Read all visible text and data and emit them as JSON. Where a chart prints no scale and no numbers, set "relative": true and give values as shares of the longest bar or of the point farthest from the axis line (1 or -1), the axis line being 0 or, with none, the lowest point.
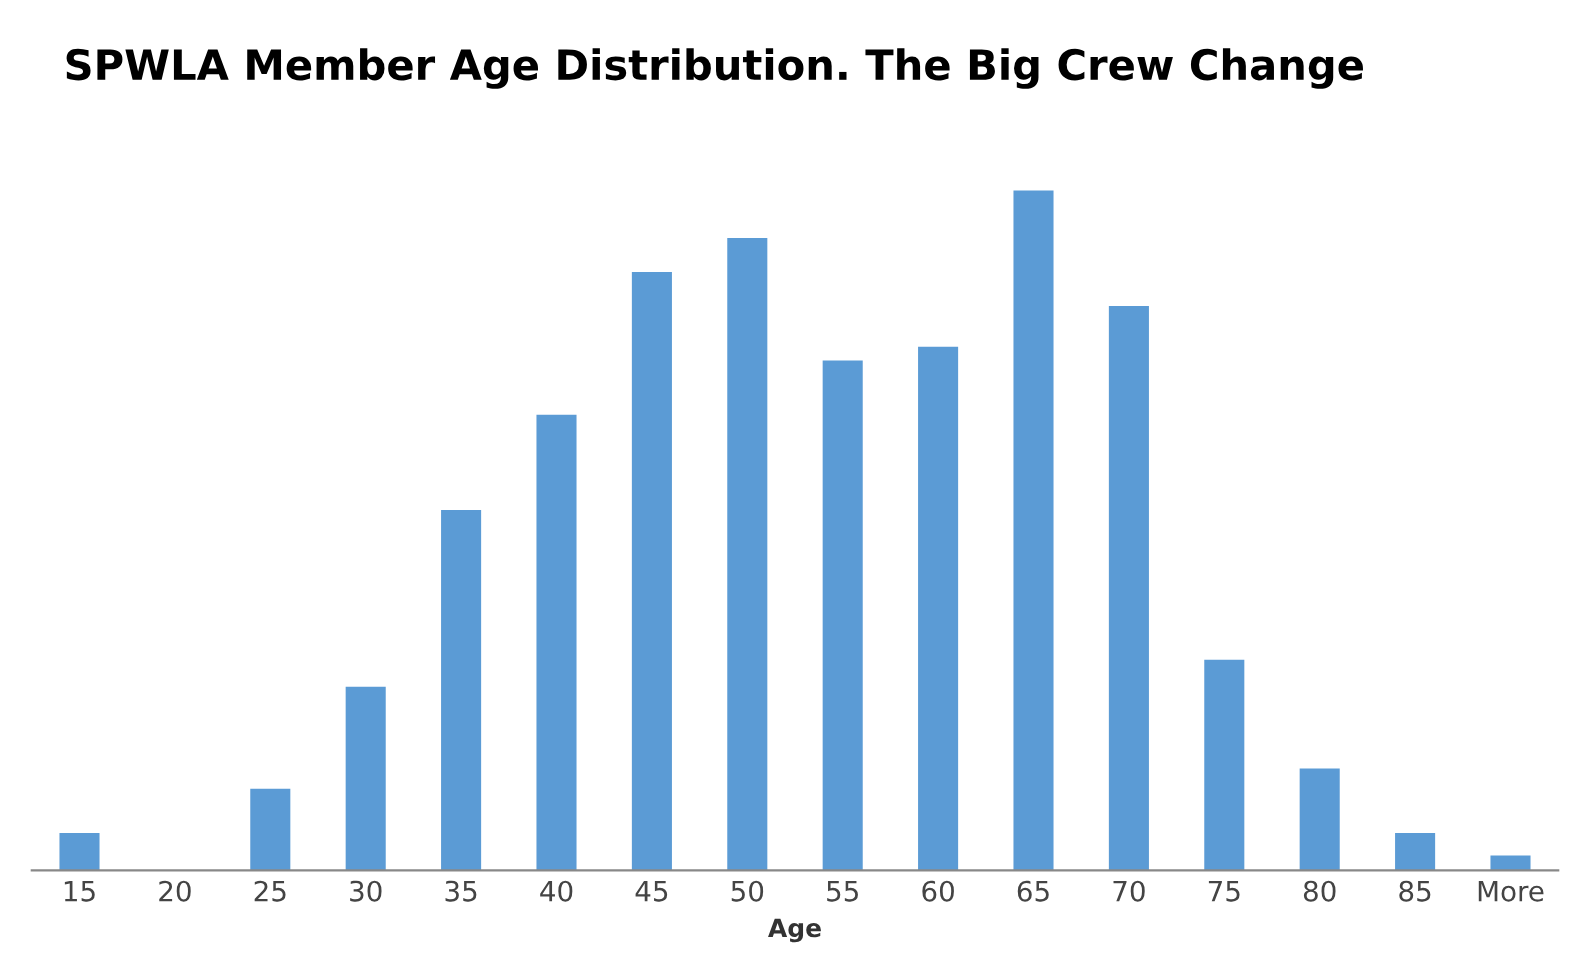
{
  "chart_data": {
    "type": "bar",
    "title": "SPWLA Member Age Distribution. The Big Crew Change",
    "xlabel": "Age",
    "categories": [
      "15",
      "20",
      "25",
      "30",
      "35",
      "40",
      "45",
      "50",
      "55",
      "60",
      "65",
      "70",
      "75",
      "80",
      "85",
      "More"
    ],
    "values": [
      0.055,
      0,
      0.12,
      0.27,
      0.53,
      0.67,
      0.88,
      0.93,
      0.75,
      0.77,
      1,
      0.83,
      0.31,
      0.15,
      0.055,
      0.022
    ],
    "color": "#5b9bd5",
    "relative": true,
    "grid": false,
    "legend": false
  }
}
